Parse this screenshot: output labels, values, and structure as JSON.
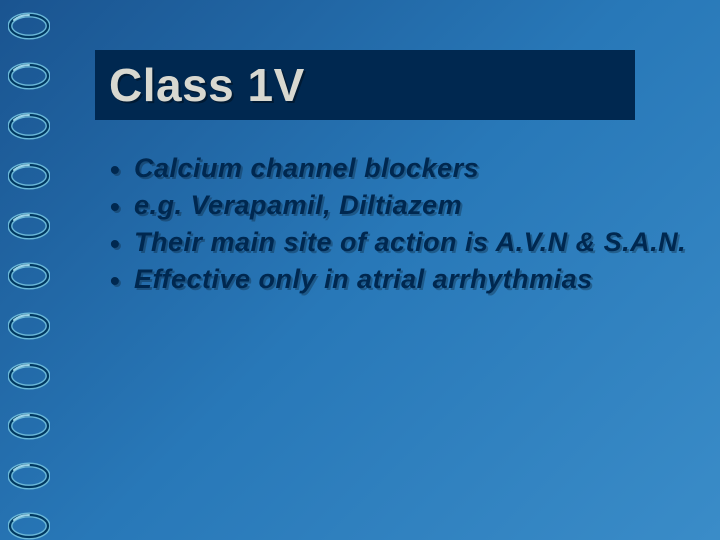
{
  "slide": {
    "title": "Class 1V",
    "title_bg": "#002850",
    "title_color": "#d8d8d0",
    "title_fontsize": 46,
    "bullets": [
      "Calcium channel blockers",
      "e.g. Verapamil, Diltiazem",
      "Their main site of action is A.V.N & S.A.N.",
      "Effective only in atrial arrhythmias"
    ],
    "bullet_color": "#002850",
    "bullet_fontsize": 27,
    "background_gradient": [
      "#1a5490",
      "#2878b8",
      "#3a8cc8"
    ],
    "spiral": {
      "ring_count": 11,
      "colors": {
        "outer": "#6bb8d8",
        "inner": "#003860",
        "highlight": "#9dd4e8"
      }
    }
  }
}
